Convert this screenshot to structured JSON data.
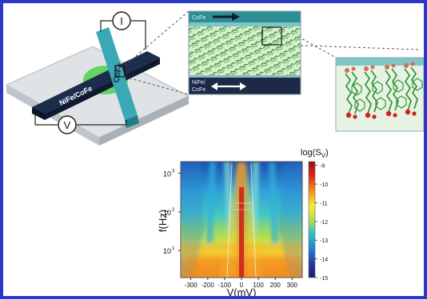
{
  "schematic": {
    "current_symbol": "I",
    "voltage_symbol": "V",
    "bottom_electrode_label": "NiFe/CoFe",
    "top_electrode_label": "CoFe"
  },
  "zoom_inset": {
    "top_layer_label": "CoFe",
    "bottom_layer_label_line1": "NiFe/",
    "bottom_layer_label_line2": "CoFe"
  },
  "chart_data": {
    "type": "heatmap",
    "xlabel": "V(mV)",
    "ylabel": "f(Hz)",
    "colorbar_label": "log(S_V)",
    "x_ticks": [
      -300,
      -200,
      -100,
      0,
      100,
      200,
      300
    ],
    "x_range": [
      -360,
      360
    ],
    "y_scale": "log",
    "y_ticks": [
      {
        "value": 10,
        "label": "10",
        "exponent": "1"
      },
      {
        "value": 100,
        "label": "10",
        "exponent": "2"
      },
      {
        "value": 1000,
        "label": "10",
        "exponent": "3"
      }
    ],
    "y_range": [
      2,
      2000
    ],
    "colorbar_ticks": [
      -9,
      -10,
      -11,
      -12,
      -13,
      -14,
      -15
    ],
    "colorbar_range": [
      -15,
      -8.8
    ],
    "colors": [
      "#9e0b0b",
      "#e2231a",
      "#f7941d",
      "#f6ea3a",
      "#b6df4a",
      "#2ec2c8",
      "#1e7fd0",
      "#233a9e",
      "#1a1d6b"
    ]
  }
}
